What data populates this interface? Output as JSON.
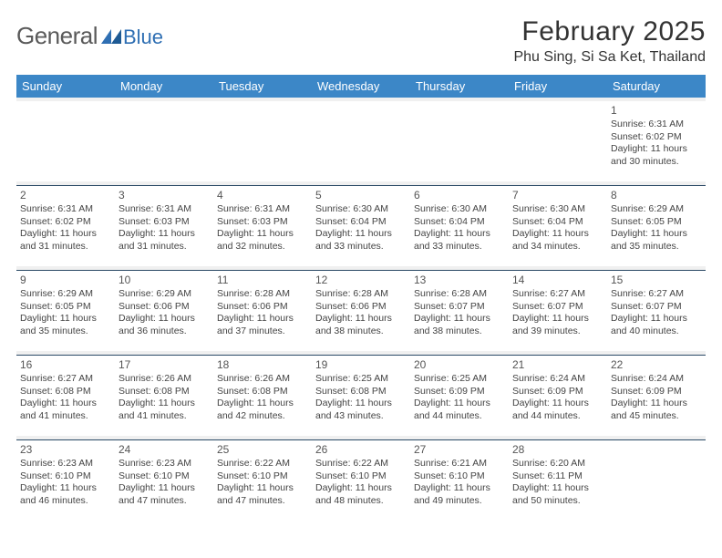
{
  "logo": {
    "text1": "General",
    "text2": "Blue"
  },
  "title": "February 2025",
  "location": "Phu Sing, Si Sa Ket, Thailand",
  "colors": {
    "header_bg": "#3c87c7",
    "header_fg": "#ffffff",
    "divider": "#2b4a66",
    "spacer": "#f0f0f0",
    "text": "#333333",
    "logo_general": "#5a5a5a",
    "logo_blue": "#2f6fb3"
  },
  "daysOfWeek": [
    "Sunday",
    "Monday",
    "Tuesday",
    "Wednesday",
    "Thursday",
    "Friday",
    "Saturday"
  ],
  "weeks": [
    [
      null,
      null,
      null,
      null,
      null,
      null,
      {
        "n": "1",
        "sunrise": "6:31 AM",
        "sunset": "6:02 PM",
        "daylight": "11 hours and 30 minutes."
      }
    ],
    [
      {
        "n": "2",
        "sunrise": "6:31 AM",
        "sunset": "6:02 PM",
        "daylight": "11 hours and 31 minutes."
      },
      {
        "n": "3",
        "sunrise": "6:31 AM",
        "sunset": "6:03 PM",
        "daylight": "11 hours and 31 minutes."
      },
      {
        "n": "4",
        "sunrise": "6:31 AM",
        "sunset": "6:03 PM",
        "daylight": "11 hours and 32 minutes."
      },
      {
        "n": "5",
        "sunrise": "6:30 AM",
        "sunset": "6:04 PM",
        "daylight": "11 hours and 33 minutes."
      },
      {
        "n": "6",
        "sunrise": "6:30 AM",
        "sunset": "6:04 PM",
        "daylight": "11 hours and 33 minutes."
      },
      {
        "n": "7",
        "sunrise": "6:30 AM",
        "sunset": "6:04 PM",
        "daylight": "11 hours and 34 minutes."
      },
      {
        "n": "8",
        "sunrise": "6:29 AM",
        "sunset": "6:05 PM",
        "daylight": "11 hours and 35 minutes."
      }
    ],
    [
      {
        "n": "9",
        "sunrise": "6:29 AM",
        "sunset": "6:05 PM",
        "daylight": "11 hours and 35 minutes."
      },
      {
        "n": "10",
        "sunrise": "6:29 AM",
        "sunset": "6:06 PM",
        "daylight": "11 hours and 36 minutes."
      },
      {
        "n": "11",
        "sunrise": "6:28 AM",
        "sunset": "6:06 PM",
        "daylight": "11 hours and 37 minutes."
      },
      {
        "n": "12",
        "sunrise": "6:28 AM",
        "sunset": "6:06 PM",
        "daylight": "11 hours and 38 minutes."
      },
      {
        "n": "13",
        "sunrise": "6:28 AM",
        "sunset": "6:07 PM",
        "daylight": "11 hours and 38 minutes."
      },
      {
        "n": "14",
        "sunrise": "6:27 AM",
        "sunset": "6:07 PM",
        "daylight": "11 hours and 39 minutes."
      },
      {
        "n": "15",
        "sunrise": "6:27 AM",
        "sunset": "6:07 PM",
        "daylight": "11 hours and 40 minutes."
      }
    ],
    [
      {
        "n": "16",
        "sunrise": "6:27 AM",
        "sunset": "6:08 PM",
        "daylight": "11 hours and 41 minutes."
      },
      {
        "n": "17",
        "sunrise": "6:26 AM",
        "sunset": "6:08 PM",
        "daylight": "11 hours and 41 minutes."
      },
      {
        "n": "18",
        "sunrise": "6:26 AM",
        "sunset": "6:08 PM",
        "daylight": "11 hours and 42 minutes."
      },
      {
        "n": "19",
        "sunrise": "6:25 AM",
        "sunset": "6:08 PM",
        "daylight": "11 hours and 43 minutes."
      },
      {
        "n": "20",
        "sunrise": "6:25 AM",
        "sunset": "6:09 PM",
        "daylight": "11 hours and 44 minutes."
      },
      {
        "n": "21",
        "sunrise": "6:24 AM",
        "sunset": "6:09 PM",
        "daylight": "11 hours and 44 minutes."
      },
      {
        "n": "22",
        "sunrise": "6:24 AM",
        "sunset": "6:09 PM",
        "daylight": "11 hours and 45 minutes."
      }
    ],
    [
      {
        "n": "23",
        "sunrise": "6:23 AM",
        "sunset": "6:10 PM",
        "daylight": "11 hours and 46 minutes."
      },
      {
        "n": "24",
        "sunrise": "6:23 AM",
        "sunset": "6:10 PM",
        "daylight": "11 hours and 47 minutes."
      },
      {
        "n": "25",
        "sunrise": "6:22 AM",
        "sunset": "6:10 PM",
        "daylight": "11 hours and 47 minutes."
      },
      {
        "n": "26",
        "sunrise": "6:22 AM",
        "sunset": "6:10 PM",
        "daylight": "11 hours and 48 minutes."
      },
      {
        "n": "27",
        "sunrise": "6:21 AM",
        "sunset": "6:10 PM",
        "daylight": "11 hours and 49 minutes."
      },
      {
        "n": "28",
        "sunrise": "6:20 AM",
        "sunset": "6:11 PM",
        "daylight": "11 hours and 50 minutes."
      },
      null
    ]
  ],
  "labels": {
    "sunrise": "Sunrise: ",
    "sunset": "Sunset: ",
    "daylight": "Daylight: "
  }
}
